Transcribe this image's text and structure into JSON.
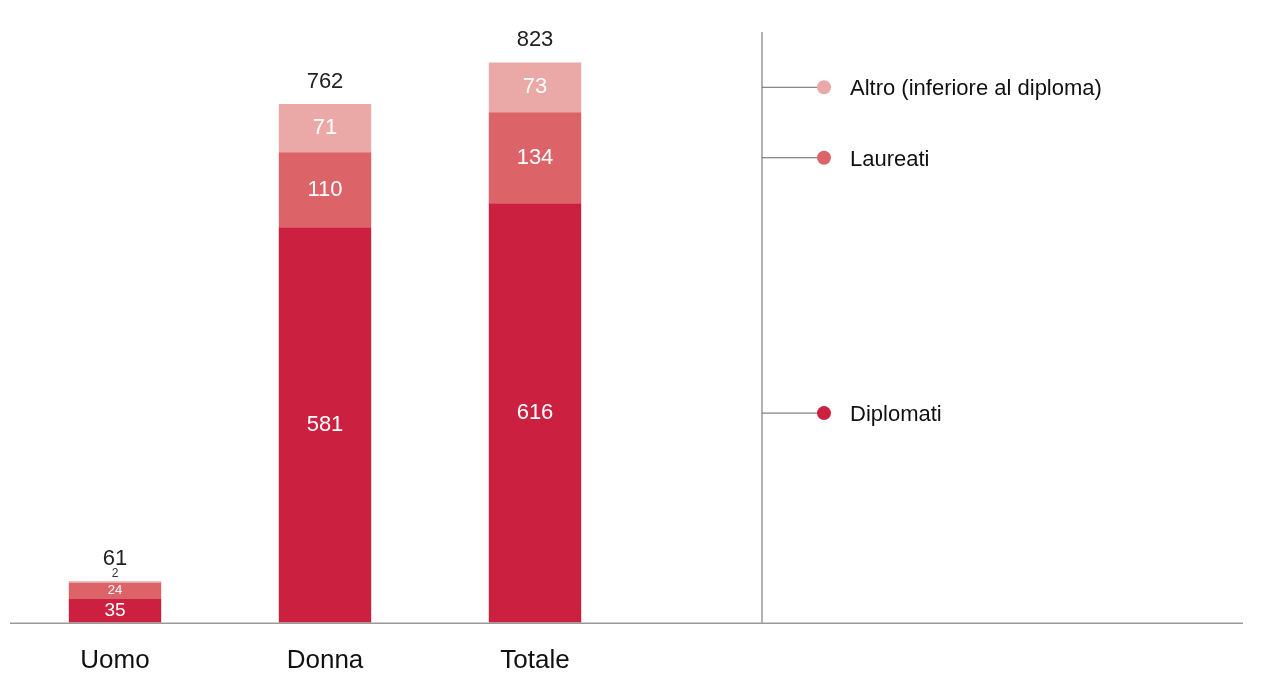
{
  "chart_data": {
    "type": "bar",
    "stacked": true,
    "categories": [
      "Uomo",
      "Donna",
      "Totale"
    ],
    "series": [
      {
        "name": "Diplomati",
        "color": "#cc2040",
        "values": [
          35,
          581,
          616
        ]
      },
      {
        "name": "Laureati",
        "color": "#dc6468",
        "values": [
          24,
          110,
          134
        ]
      },
      {
        "name": "Altro (inferiore al diploma)",
        "color": "#eaa9a6",
        "values": [
          2,
          71,
          73
        ]
      }
    ],
    "totals": [
      "61",
      "762",
      "823"
    ],
    "data_labels": true,
    "tick_labels": "x",
    "grid": false,
    "legend": "right"
  }
}
